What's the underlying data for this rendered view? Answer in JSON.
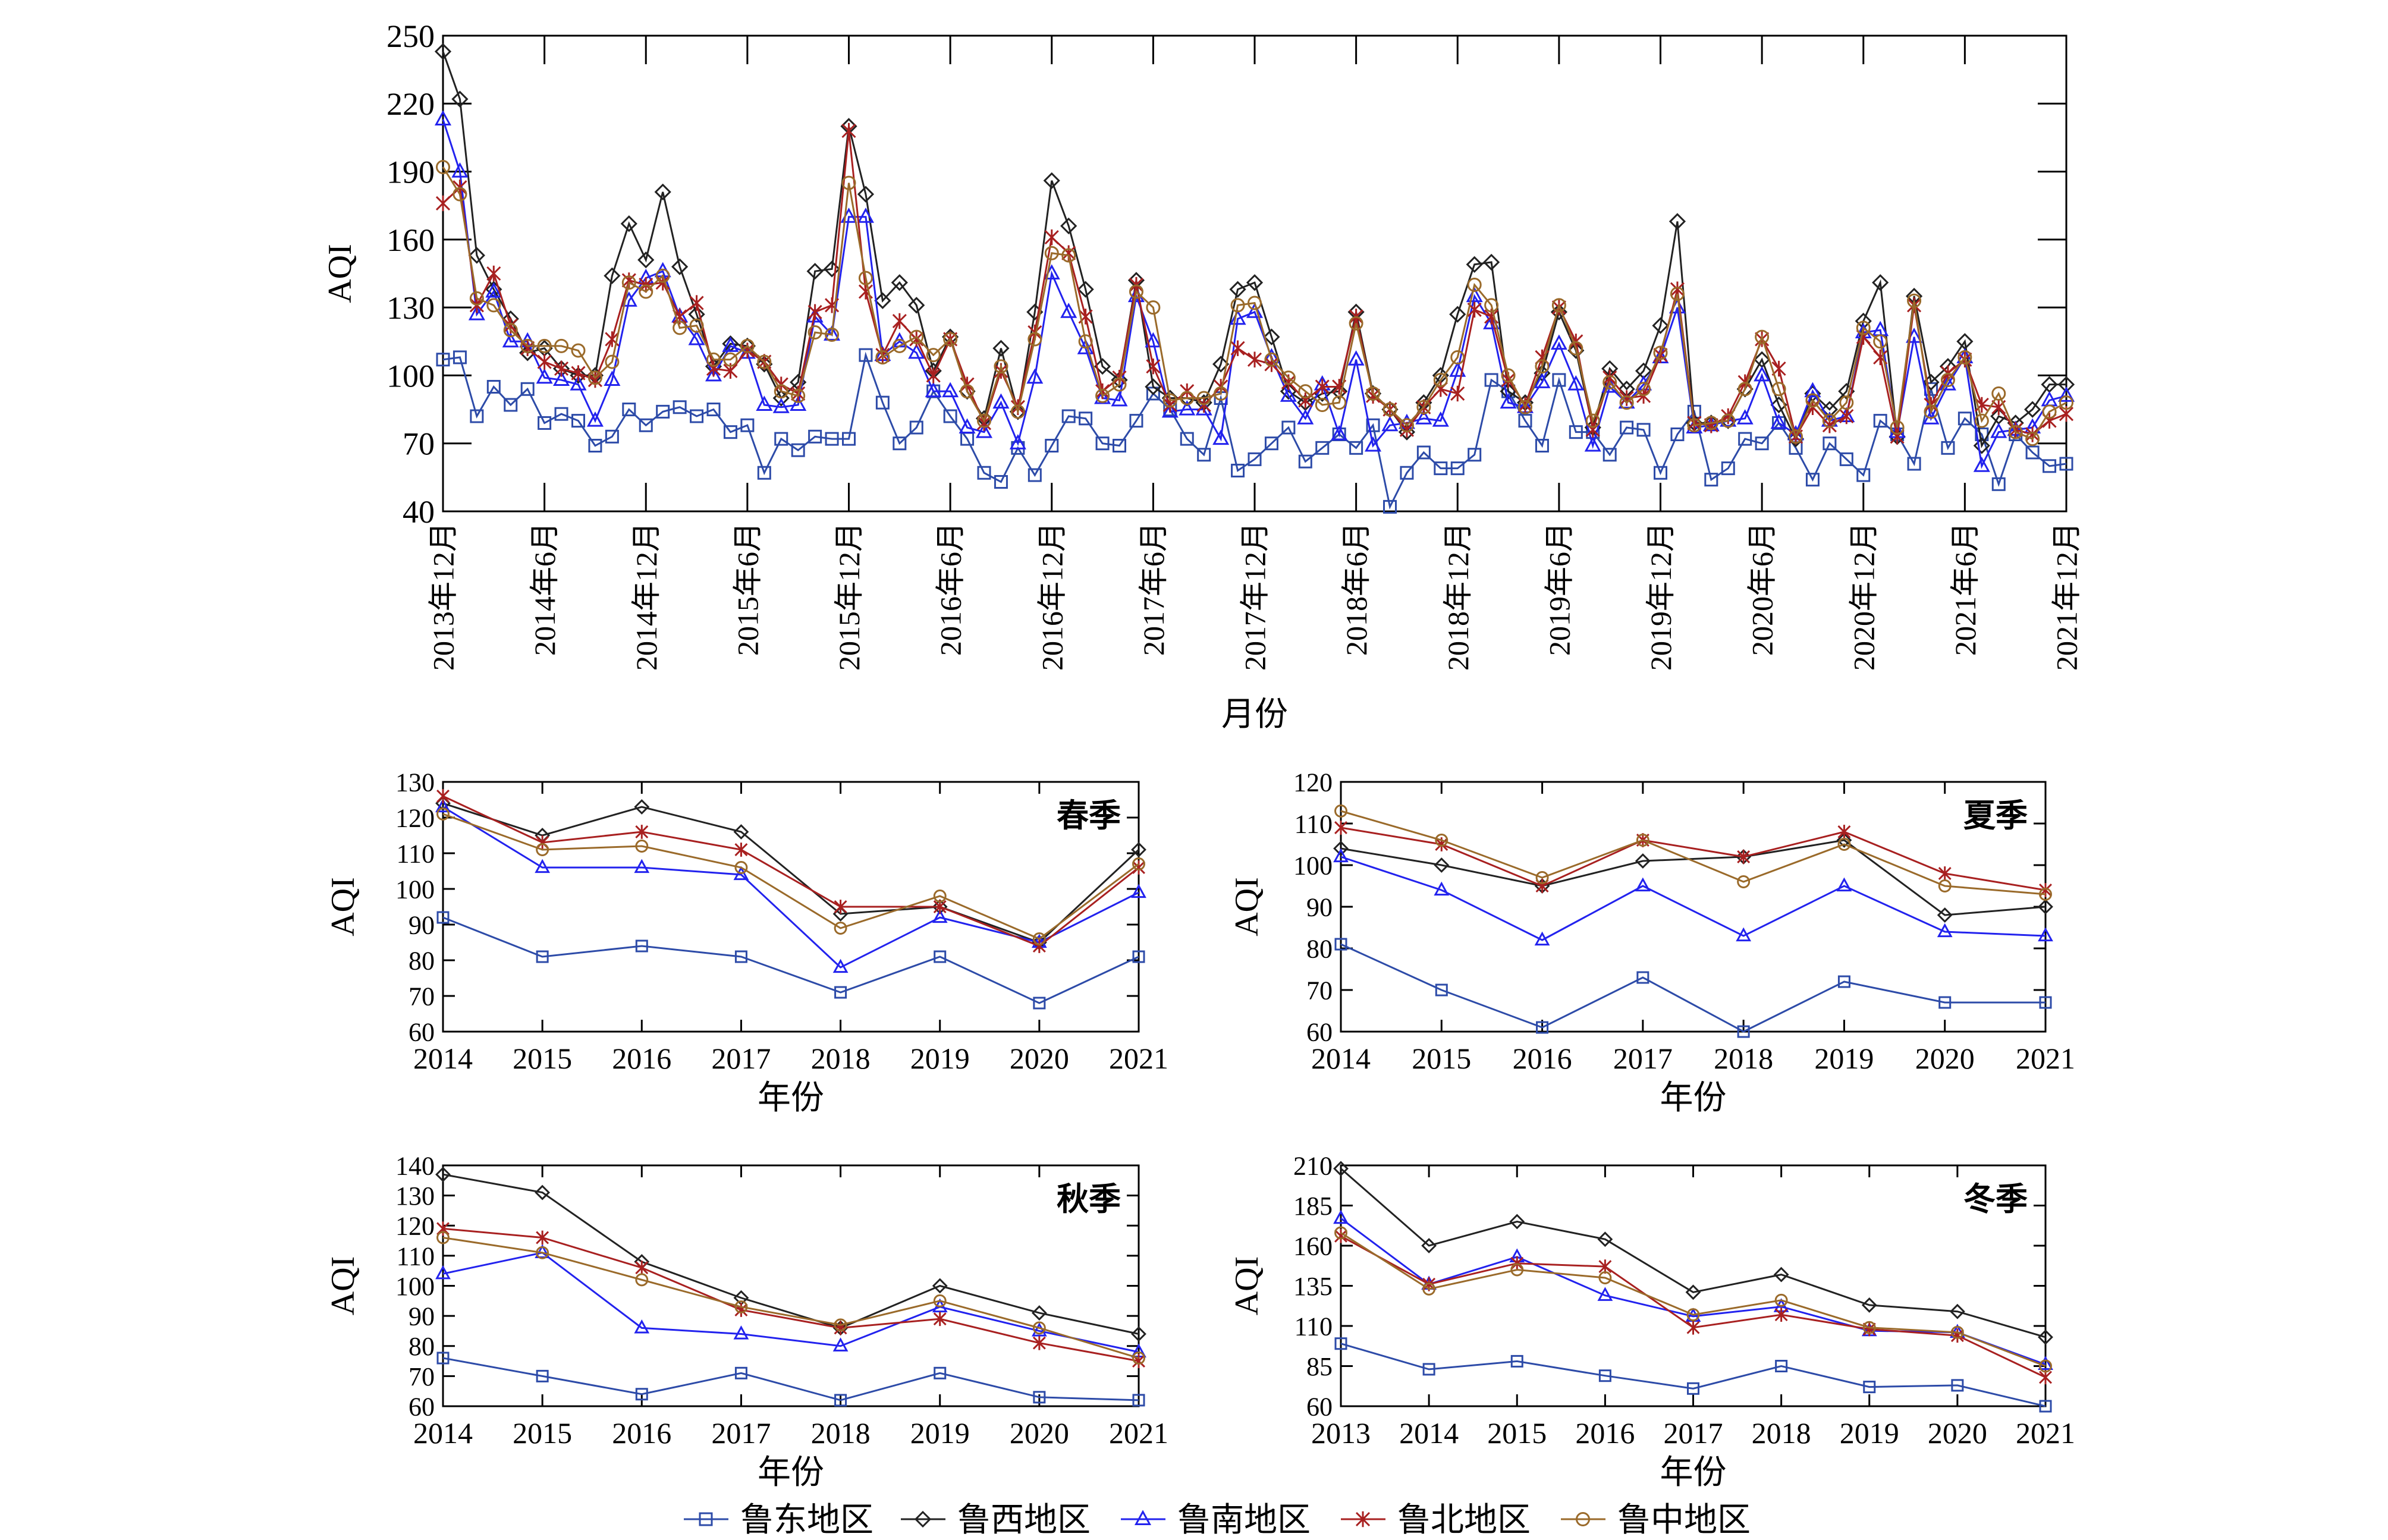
{
  "legend": {
    "items": [
      {
        "name": "鲁东地区",
        "color": "#2D4BA8",
        "marker": "square"
      },
      {
        "name": "鲁西地区",
        "color": "#222222",
        "marker": "diamond"
      },
      {
        "name": "鲁南地区",
        "color": "#2222EE",
        "marker": "triangle"
      },
      {
        "name": "鲁北地区",
        "color": "#A82020",
        "marker": "star"
      },
      {
        "name": "鲁中地区",
        "color": "#9A6A2A",
        "marker": "circle"
      }
    ]
  },
  "chart_data": [
    {
      "type": "line",
      "id": "monthly",
      "title": "",
      "xlabel": "月份",
      "ylabel": "AQI",
      "ylim": [
        40,
        250
      ],
      "yticks": [
        40,
        70,
        100,
        130,
        160,
        190,
        220,
        250
      ],
      "xlim": [
        0,
        96
      ],
      "xticks": [
        {
          "pos": 0,
          "label": "2013年12月"
        },
        {
          "pos": 6,
          "label": "2014年6月"
        },
        {
          "pos": 12,
          "label": "2014年12月"
        },
        {
          "pos": 18,
          "label": "2015年6月"
        },
        {
          "pos": 24,
          "label": "2015年12月"
        },
        {
          "pos": 30,
          "label": "2016年6月"
        },
        {
          "pos": 36,
          "label": "2016年12月"
        },
        {
          "pos": 42,
          "label": "2017年6月"
        },
        {
          "pos": 48,
          "label": "2017年12月"
        },
        {
          "pos": 54,
          "label": "2018年6月"
        },
        {
          "pos": 60,
          "label": "2018年12月"
        },
        {
          "pos": 66,
          "label": "2019年6月"
        },
        {
          "pos": 72,
          "label": "2019年12月"
        },
        {
          "pos": 78,
          "label": "2020年6月"
        },
        {
          "pos": 84,
          "label": "2020年12月"
        },
        {
          "pos": 90,
          "label": "2021年6月"
        },
        {
          "pos": 96,
          "label": "2021年12月"
        }
      ],
      "series": [
        {
          "name": "鲁东地区",
          "values": [
            107,
            108,
            82,
            95,
            87,
            94,
            79,
            83,
            80,
            69,
            73,
            85,
            78,
            84,
            86,
            82,
            85,
            75,
            78,
            57,
            72,
            67,
            73,
            72,
            72,
            109,
            88,
            70,
            77,
            93,
            82,
            72,
            57,
            53,
            68,
            56,
            69,
            82,
            81,
            70,
            69,
            80,
            92,
            85,
            72,
            65,
            90,
            58,
            63,
            70,
            77,
            62,
            68,
            74,
            68,
            78,
            42,
            57,
            66,
            59,
            59,
            65,
            98,
            93,
            80,
            69,
            98,
            75,
            75,
            65,
            77,
            76,
            57,
            74,
            84,
            54,
            59,
            72,
            70,
            79,
            68,
            54,
            70,
            63,
            56,
            80,
            74,
            61,
            94,
            68,
            81,
            74,
            52,
            74,
            66,
            60,
            61
          ]
        },
        {
          "name": "鲁西地区",
          "values": [
            243,
            222,
            153,
            138,
            125,
            110,
            112,
            103,
            100,
            100,
            144,
            167,
            151,
            181,
            148,
            127,
            104,
            114,
            113,
            105,
            90,
            97,
            146,
            147,
            210,
            180,
            133,
            141,
            131,
            102,
            117,
            93,
            81,
            112,
            84,
            128,
            186,
            166,
            138,
            104,
            98,
            142,
            95,
            90,
            90,
            88,
            105,
            138,
            141,
            117,
            93,
            88,
            92,
            93,
            128,
            92,
            85,
            75,
            88,
            100,
            127,
            149,
            150,
            93,
            88,
            101,
            128,
            111,
            77,
            103,
            94,
            102,
            122,
            168,
            79,
            79,
            80,
            94,
            107,
            87,
            72,
            92,
            85,
            93,
            124,
            141,
            73,
            135,
            97,
            104,
            115,
            69,
            82,
            79,
            85,
            96,
            96
          ]
        },
        {
          "name": "鲁南地区",
          "values": [
            213,
            190,
            127,
            137,
            115,
            115,
            99,
            98,
            96,
            80,
            98,
            133,
            143,
            146,
            126,
            116,
            100,
            113,
            110,
            87,
            86,
            87,
            126,
            118,
            170,
            170,
            109,
            115,
            110,
            93,
            93,
            77,
            75,
            88,
            70,
            99,
            145,
            128,
            112,
            90,
            89,
            135,
            115,
            84,
            85,
            85,
            72,
            125,
            128,
            108,
            91,
            81,
            96,
            74,
            107,
            69,
            78,
            79,
            81,
            80,
            102,
            135,
            123,
            88,
            86,
            97,
            114,
            96,
            69,
            95,
            88,
            96,
            108,
            130,
            77,
            78,
            80,
            81,
            100,
            79,
            74,
            93,
            80,
            82,
            119,
            120,
            75,
            117,
            81,
            96,
            108,
            60,
            75,
            76,
            77,
            89,
            91
          ]
        },
        {
          "name": "鲁北地区",
          "values": [
            176,
            183,
            131,
            145,
            122,
            112,
            106,
            103,
            101,
            98,
            116,
            142,
            140,
            141,
            126,
            132,
            103,
            102,
            111,
            106,
            96,
            92,
            128,
            131,
            208,
            137,
            109,
            124,
            116,
            100,
            116,
            96,
            79,
            102,
            86,
            119,
            161,
            154,
            126,
            93,
            99,
            140,
            104,
            87,
            93,
            87,
            95,
            112,
            107,
            105,
            97,
            89,
            95,
            95,
            126,
            91,
            85,
            76,
            86,
            94,
            92,
            129,
            126,
            98,
            87,
            108,
            130,
            115,
            76,
            99,
            90,
            91,
            109,
            138,
            79,
            78,
            82,
            97,
            116,
            103,
            73,
            86,
            78,
            82,
            117,
            108,
            73,
            131,
            87,
            101,
            107,
            87,
            86,
            76,
            74,
            80,
            83
          ]
        },
        {
          "name": "鲁中地区",
          "values": [
            192,
            180,
            134,
            131,
            120,
            113,
            113,
            113,
            111,
            99,
            106,
            141,
            137,
            144,
            121,
            122,
            107,
            107,
            113,
            106,
            93,
            91,
            119,
            118,
            185,
            143,
            108,
            113,
            117,
            109,
            116,
            93,
            80,
            104,
            84,
            116,
            154,
            153,
            115,
            91,
            96,
            137,
            130,
            89,
            90,
            90,
            92,
            131,
            132,
            107,
            99,
            93,
            87,
            88,
            123,
            92,
            85,
            78,
            86,
            98,
            108,
            140,
            131,
            100,
            86,
            104,
            131,
            112,
            80,
            97,
            88,
            94,
            110,
            136,
            78,
            79,
            80,
            94,
            117,
            94,
            73,
            89,
            80,
            88,
            121,
            115,
            77,
            133,
            84,
            98,
            108,
            80,
            92,
            75,
            72,
            84,
            88
          ]
        }
      ]
    },
    {
      "type": "line",
      "id": "spring",
      "title": "春季",
      "xlabel": "年份",
      "ylabel": "AQI",
      "ylim": [
        60,
        130
      ],
      "yticks": [
        60,
        70,
        80,
        90,
        100,
        110,
        120,
        130
      ],
      "categories": [
        "2014",
        "2015",
        "2016",
        "2017",
        "2018",
        "2019",
        "2020",
        "2021"
      ],
      "series": [
        {
          "name": "鲁东地区",
          "values": [
            92,
            81,
            84,
            81,
            71,
            81,
            68,
            81
          ]
        },
        {
          "name": "鲁西地区",
          "values": [
            124,
            115,
            123,
            116,
            93,
            95,
            85,
            111
          ]
        },
        {
          "name": "鲁南地区",
          "values": [
            123,
            106,
            106,
            104,
            78,
            92,
            85,
            99
          ]
        },
        {
          "name": "鲁北地区",
          "values": [
            126,
            113,
            116,
            111,
            95,
            95,
            84,
            106
          ]
        },
        {
          "name": "鲁中地区",
          "values": [
            121,
            111,
            112,
            106,
            89,
            98,
            86,
            107
          ]
        }
      ]
    },
    {
      "type": "line",
      "id": "summer",
      "title": "夏季",
      "xlabel": "年份",
      "ylabel": "AQI",
      "ylim": [
        60,
        120
      ],
      "yticks": [
        60,
        70,
        80,
        90,
        100,
        110,
        120
      ],
      "categories": [
        "2014",
        "2015",
        "2016",
        "2017",
        "2018",
        "2019",
        "2020",
        "2021"
      ],
      "series": [
        {
          "name": "鲁东地区",
          "values": [
            81,
            70,
            61,
            73,
            60,
            72,
            67,
            67
          ]
        },
        {
          "name": "鲁西地区",
          "values": [
            104,
            100,
            95,
            101,
            102,
            106,
            88,
            90
          ]
        },
        {
          "name": "鲁南地区",
          "values": [
            102,
            94,
            82,
            95,
            83,
            95,
            84,
            83
          ]
        },
        {
          "name": "鲁北地区",
          "values": [
            109,
            105,
            95,
            106,
            102,
            108,
            98,
            94
          ]
        },
        {
          "name": "鲁中地区",
          "values": [
            113,
            106,
            97,
            106,
            96,
            105,
            95,
            93
          ]
        }
      ]
    },
    {
      "type": "line",
      "id": "autumn",
      "title": "秋季",
      "xlabel": "年份",
      "ylabel": "AQI",
      "ylim": [
        60,
        140
      ],
      "yticks": [
        60,
        70,
        80,
        90,
        100,
        110,
        120,
        130,
        140
      ],
      "categories": [
        "2014",
        "2015",
        "2016",
        "2017",
        "2018",
        "2019",
        "2020",
        "2021"
      ],
      "series": [
        {
          "name": "鲁东地区",
          "values": [
            76,
            70,
            64,
            71,
            62,
            71,
            63,
            62
          ]
        },
        {
          "name": "鲁西地区",
          "values": [
            137,
            131,
            108,
            96,
            86,
            100,
            91,
            84
          ]
        },
        {
          "name": "鲁南地区",
          "values": [
            104,
            111,
            86,
            84,
            80,
            93,
            85,
            78
          ]
        },
        {
          "name": "鲁北地区",
          "values": [
            119,
            116,
            106,
            92,
            86,
            89,
            81,
            75
          ]
        },
        {
          "name": "鲁中地区",
          "values": [
            116,
            111,
            102,
            93,
            87,
            95,
            86,
            76
          ]
        }
      ]
    },
    {
      "type": "line",
      "id": "winter",
      "title": "冬季",
      "xlabel": "年份",
      "ylabel": "AQI",
      "ylim": [
        60,
        210
      ],
      "yticks": [
        60,
        85,
        110,
        135,
        160,
        185,
        210
      ],
      "categories": [
        "2013",
        "2014",
        "2015",
        "2016",
        "2017",
        "2018",
        "2019",
        "2020",
        "2021"
      ],
      "series": [
        {
          "name": "鲁东地区",
          "values": [
            99,
            83,
            88,
            79,
            71,
            85,
            72,
            73,
            60
          ]
        },
        {
          "name": "鲁西地区",
          "values": [
            208,
            160,
            175,
            164,
            131,
            142,
            123,
            119,
            103
          ]
        },
        {
          "name": "鲁南地区",
          "values": [
            177,
            136,
            153,
            129,
            116,
            122,
            107,
            106,
            86
          ]
        },
        {
          "name": "鲁北地区",
          "values": [
            166,
            136,
            149,
            147,
            109,
            117,
            108,
            104,
            78
          ]
        },
        {
          "name": "鲁中地区",
          "values": [
            168,
            133,
            145,
            140,
            117,
            126,
            109,
            106,
            85
          ]
        }
      ]
    }
  ]
}
